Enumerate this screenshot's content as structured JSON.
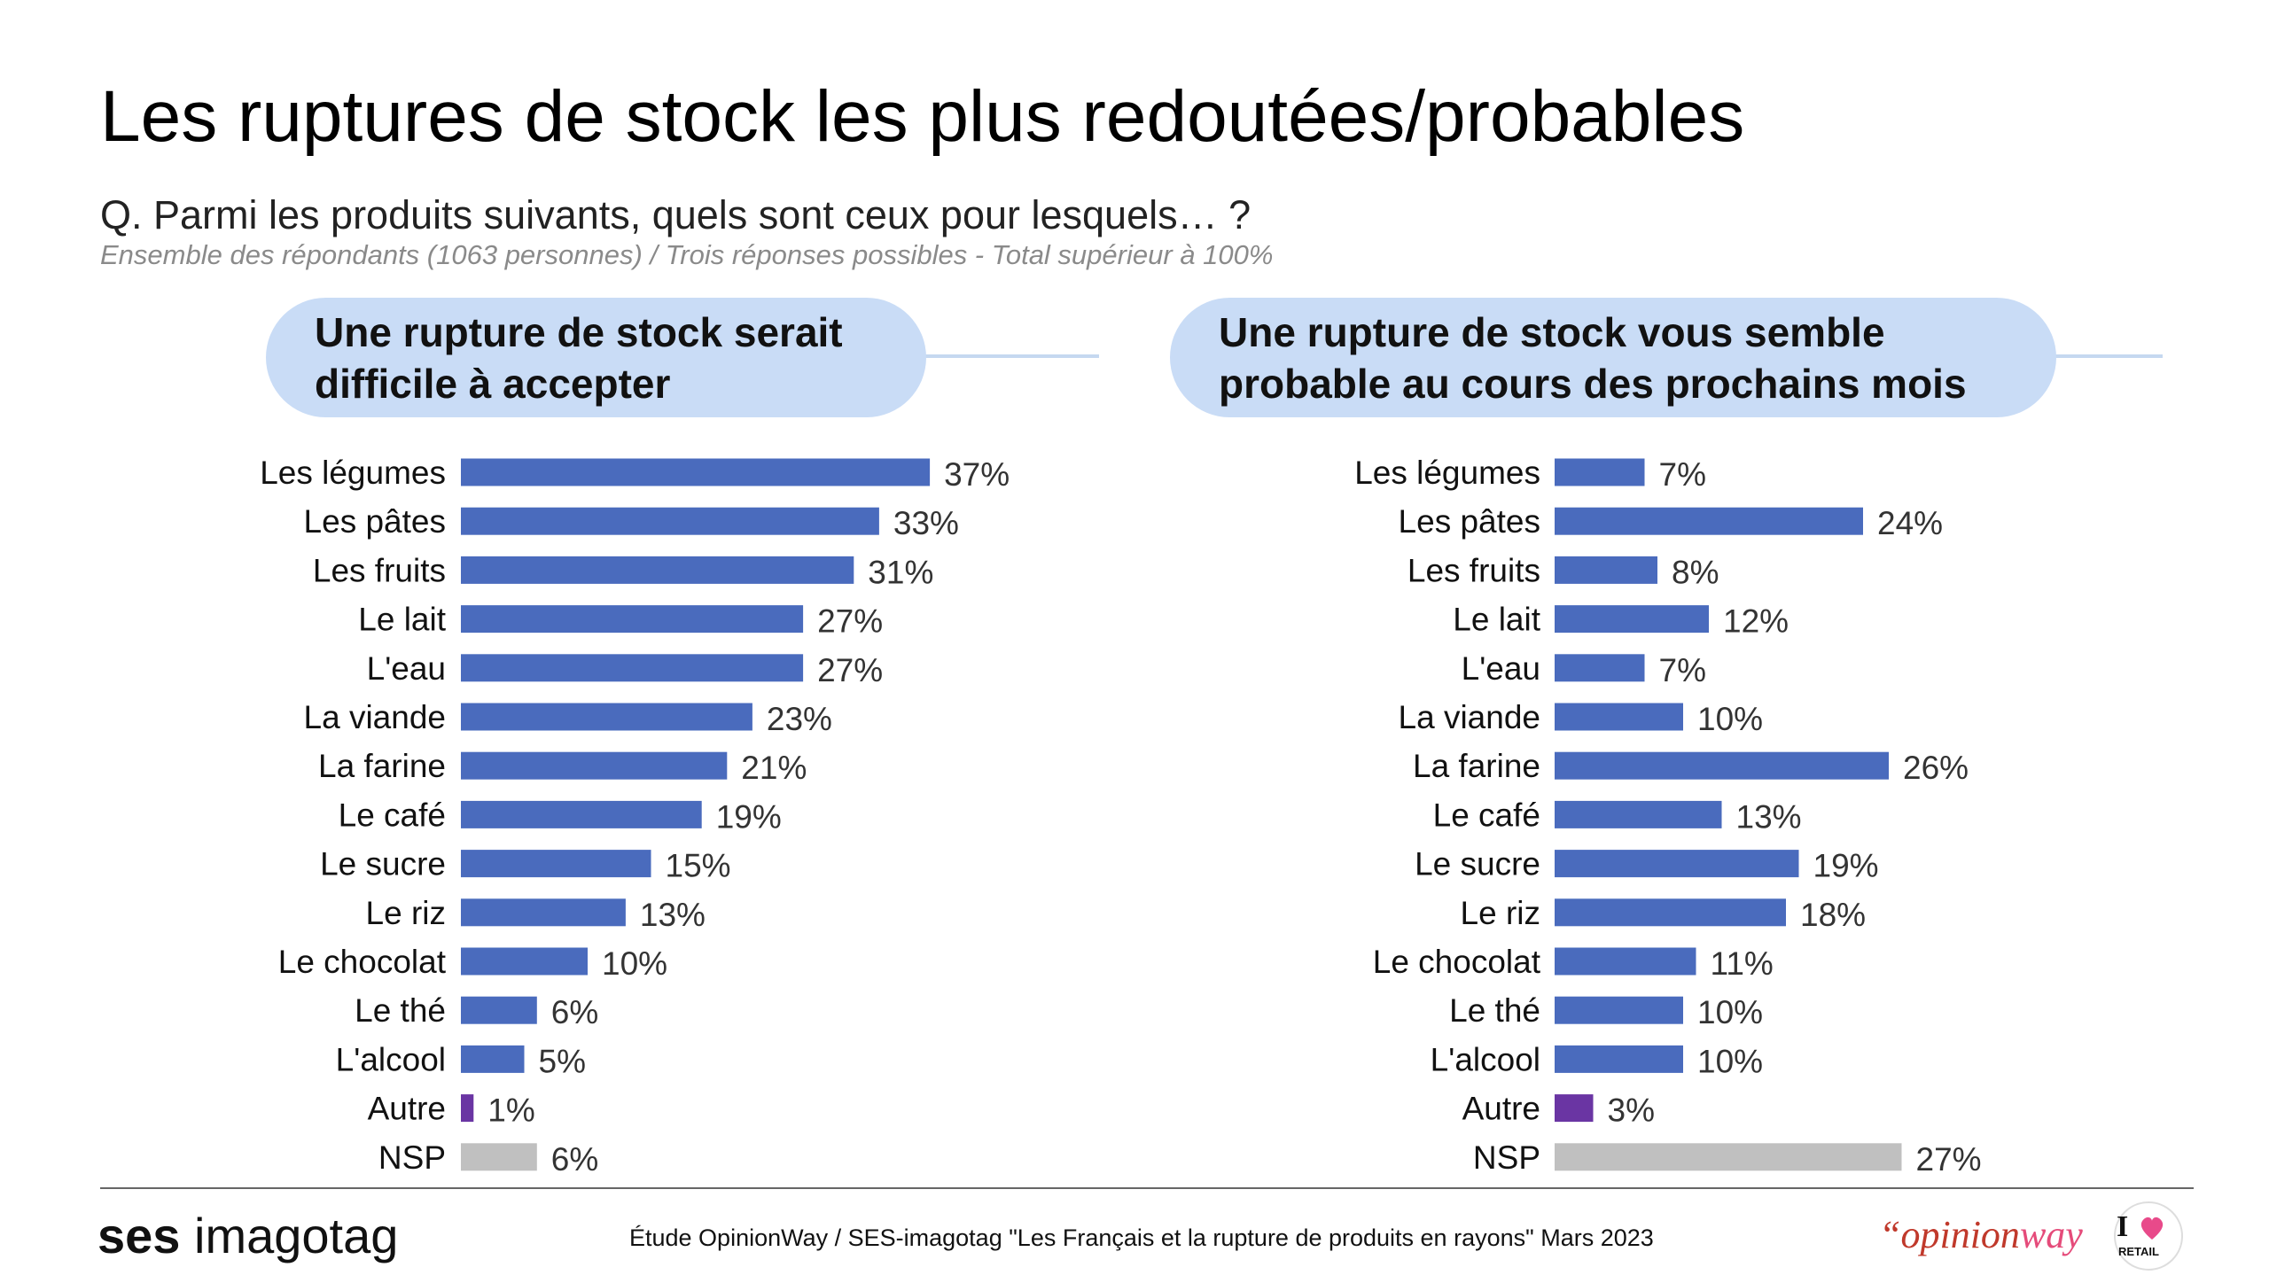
{
  "header": {
    "title": "Les ruptures de stock les plus redoutées/probables",
    "question": "Q. Parmi les produits suivants, quels sont ceux pour lesquels… ?",
    "note": "Ensemble des répondants (1063 personnes) / Trois réponses possibles - Total supérieur à 100%"
  },
  "panels": [
    {
      "title_line1": "Une rupture de stock serait",
      "title_line2": "difficile à accepter"
    },
    {
      "title_line1": "Une rupture de stock vous semble",
      "title_line2": "probable au cours des prochains mois"
    }
  ],
  "colors": {
    "main": "#4a6bbd",
    "autre": "#6a35a3",
    "nsp": "#c0c0c0",
    "pill": "#c9dcf6"
  },
  "chart_data": [
    {
      "type": "bar",
      "orientation": "horizontal",
      "title": "Une rupture de stock serait difficile à accepter",
      "categories": [
        "Les légumes",
        "Les pâtes",
        "Les fruits",
        "Le lait",
        "L'eau",
        "La viande",
        "La farine",
        "Le café",
        "Le sucre",
        "Le riz",
        "Le chocolat",
        "Le thé",
        "L'alcool",
        "Autre",
        "NSP"
      ],
      "values": [
        37,
        33,
        31,
        27,
        27,
        23,
        21,
        19,
        15,
        13,
        10,
        6,
        5,
        1,
        6
      ],
      "labels": [
        "37%",
        "33%",
        "31%",
        "27%",
        "27%",
        "23%",
        "21%",
        "19%",
        "15%",
        "13%",
        "10%",
        "6%",
        "5%",
        "1%",
        "6%"
      ],
      "unit": "%"
    },
    {
      "type": "bar",
      "orientation": "horizontal",
      "title": "Une rupture de stock vous semble probable au cours des prochains mois",
      "categories": [
        "Les légumes",
        "Les pâtes",
        "Les fruits",
        "Le lait",
        "L'eau",
        "La viande",
        "La farine",
        "Le café",
        "Le sucre",
        "Le riz",
        "Le chocolat",
        "Le thé",
        "L'alcool",
        "Autre",
        "NSP"
      ],
      "values": [
        7,
        24,
        8,
        12,
        7,
        10,
        26,
        13,
        19,
        18,
        11,
        10,
        10,
        3,
        27
      ],
      "labels": [
        "7%",
        "24%",
        "8%",
        "12%",
        "7%",
        "10%",
        "26%",
        "13%",
        "19%",
        "18%",
        "11%",
        "10%",
        "10%",
        "3%",
        "27%"
      ],
      "unit": "%"
    }
  ],
  "footer": {
    "brand_ses_bold": "ses",
    "brand_ses_light": "imagotag",
    "study": "Étude OpinionWay / SES-imagotag \"Les Français et la rupture de produits en rayons\" Mars 2023",
    "brand_ow_quote": "“",
    "brand_ow_opinion": "opinion",
    "brand_ow_way": "way",
    "brand_retail_text": "RETAIL"
  }
}
